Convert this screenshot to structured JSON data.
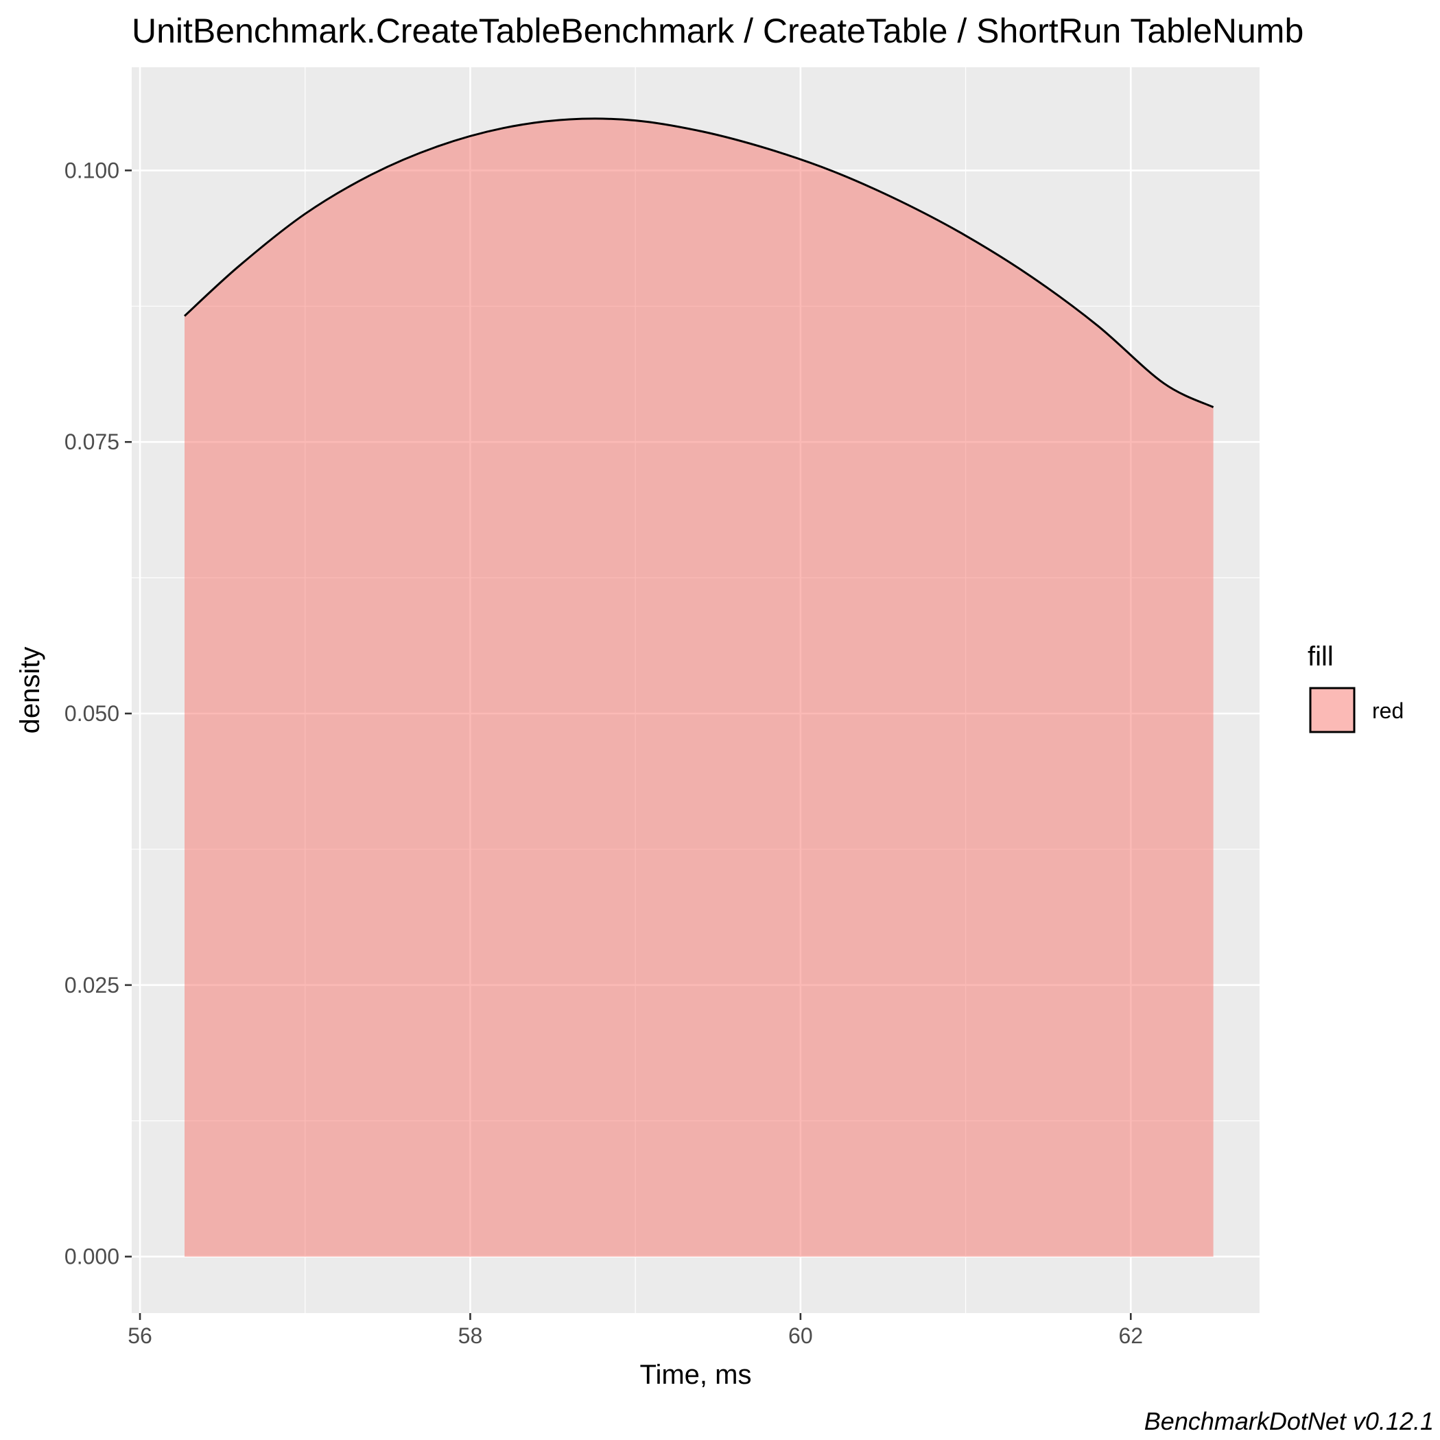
{
  "chart_data": {
    "type": "area",
    "title": "UnitBenchmark.CreateTableBenchmark / CreateTable / ShortRun TableNumb",
    "xlabel": "Time, ms",
    "ylabel": "density",
    "caption": "BenchmarkDotNet v0.12.1",
    "xlim": [
      55.95,
      62.78
    ],
    "ylim": [
      -0.0052,
      0.1095
    ],
    "x_ticks": [
      56,
      58,
      60,
      62
    ],
    "x_tick_labels": [
      "56",
      "58",
      "60",
      "62"
    ],
    "y_ticks": [
      0.0,
      0.025,
      0.05,
      0.075,
      0.1
    ],
    "y_tick_labels": [
      "0.000",
      "0.025",
      "0.050",
      "0.075",
      "0.100"
    ],
    "grid": true,
    "legend": {
      "title": "fill",
      "placement": "right",
      "entries": [
        "red"
      ]
    },
    "colors": {
      "fill": "#F8766D",
      "panel": "#EBEBEB",
      "grid": "#FFFFFF",
      "line": "#000000"
    },
    "series": [
      {
        "name": "red",
        "x": [
          56.27,
          56.6,
          57.0,
          57.4,
          57.8,
          58.2,
          58.6,
          59.0,
          59.4,
          59.8,
          60.2,
          60.6,
          61.0,
          61.4,
          61.8,
          62.2,
          62.5
        ],
        "y": [
          0.0866,
          0.0912,
          0.096,
          0.0996,
          0.1022,
          0.1039,
          0.1047,
          0.1046,
          0.1036,
          0.102,
          0.0999,
          0.0972,
          0.094,
          0.0902,
          0.0857,
          0.0804,
          0.0782
        ]
      }
    ]
  }
}
